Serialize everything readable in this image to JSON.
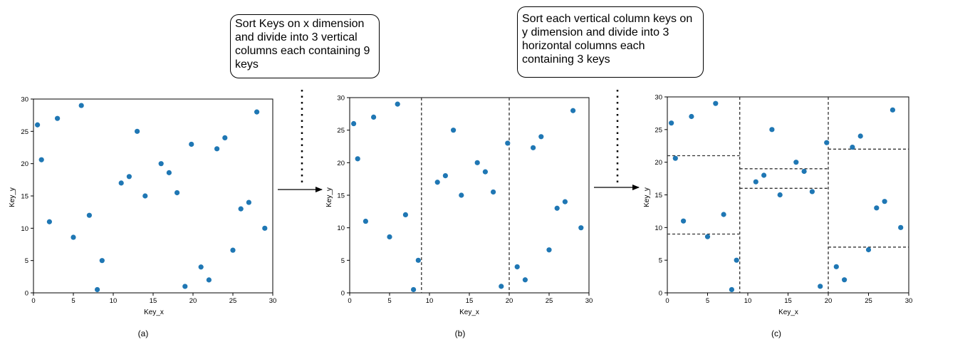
{
  "callouts": [
    "Sort Keys on x dimension and divide into 3 vertical columns each containing 9 keys",
    "Sort each vertical column keys on y dimension and divide into 3 horizontal columns each containing 3 keys"
  ],
  "panels": [
    {
      "caption": "(a)",
      "split_x": [],
      "split_y": []
    },
    {
      "caption": "(b)",
      "split_x": [
        9,
        20
      ],
      "split_y": []
    },
    {
      "caption": "(c)",
      "split_x": [
        9,
        20
      ],
      "split_y": [
        {
          "x0": 0,
          "x1": 9,
          "y": 21
        },
        {
          "x0": 0,
          "x1": 9,
          "y": 9
        },
        {
          "x0": 9,
          "x1": 20,
          "y": 19
        },
        {
          "x0": 9,
          "x1": 20,
          "y": 16
        },
        {
          "x0": 20,
          "x1": 30,
          "y": 22
        },
        {
          "x0": 20,
          "x1": 30,
          "y": 7
        }
      ]
    }
  ],
  "chart_data": {
    "type": "scatter",
    "xlabel": "Key_x",
    "ylabel": "Key_y",
    "xlim": [
      0,
      30
    ],
    "ylim": [
      0,
      30
    ],
    "xticks": [
      0,
      5,
      10,
      15,
      20,
      25,
      30
    ],
    "yticks": [
      0,
      5,
      10,
      15,
      20,
      25,
      30
    ],
    "marker_color": "#1f77b4",
    "points": [
      [
        0.5,
        26
      ],
      [
        1,
        20.6
      ],
      [
        2,
        11
      ],
      [
        3,
        27
      ],
      [
        5,
        8.6
      ],
      [
        6,
        29
      ],
      [
        7,
        12
      ],
      [
        8,
        0.5
      ],
      [
        8.6,
        5
      ],
      [
        11,
        17
      ],
      [
        12,
        18
      ],
      [
        13,
        25
      ],
      [
        14,
        15
      ],
      [
        16,
        20
      ],
      [
        17,
        18.6
      ],
      [
        18,
        15.5
      ],
      [
        19,
        1
      ],
      [
        19.8,
        23
      ],
      [
        21,
        4
      ],
      [
        22,
        2
      ],
      [
        23,
        22.3
      ],
      [
        24,
        24
      ],
      [
        25,
        6.6
      ],
      [
        26,
        13
      ],
      [
        27,
        14
      ],
      [
        28,
        28
      ],
      [
        29,
        10
      ]
    ]
  }
}
